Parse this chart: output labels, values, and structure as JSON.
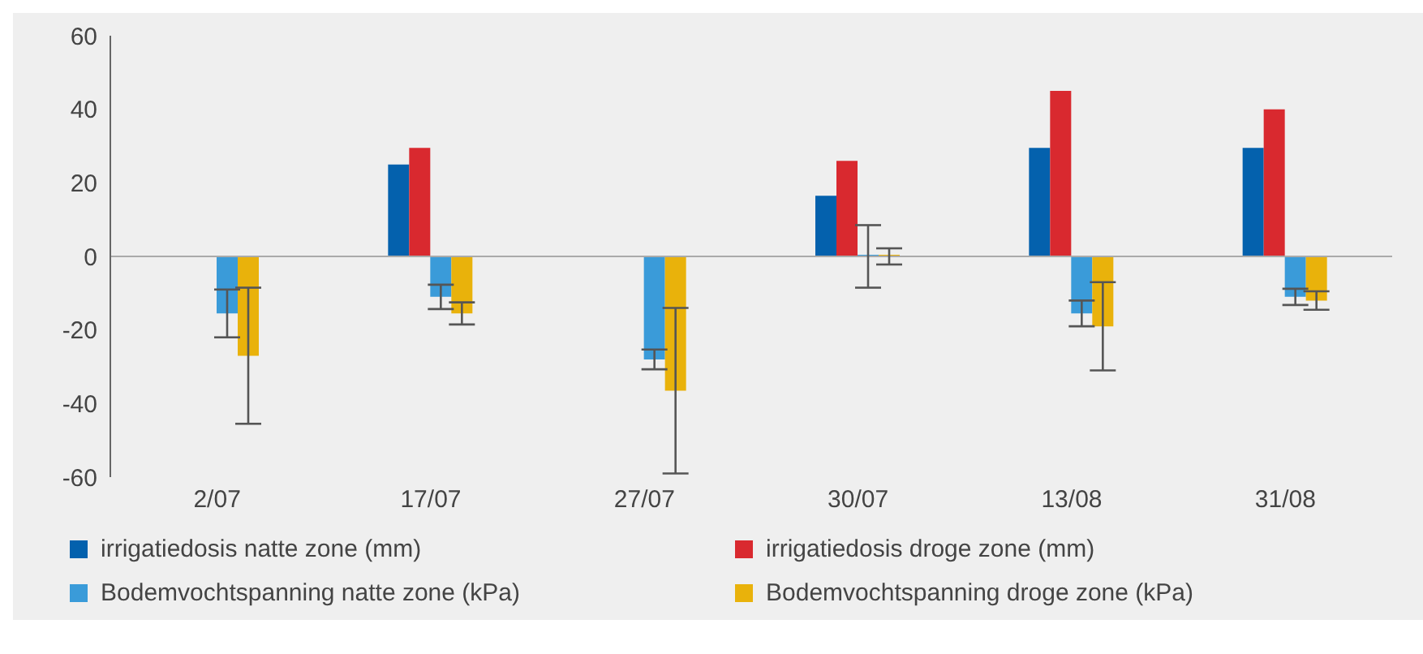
{
  "chart_data": {
    "type": "bar",
    "categories": [
      "2/07",
      "17/07",
      "27/07",
      "30/07",
      "13/08",
      "31/08"
    ],
    "series": [
      {
        "name": "irrigatiedosis natte zone (mm)",
        "color": "#0461ad",
        "values": [
          null,
          25,
          null,
          16.5,
          29.5,
          29.5
        ]
      },
      {
        "name": "irrigatiedosis droge zone (mm)",
        "color": "#d9292f",
        "values": [
          null,
          29.5,
          null,
          26,
          45,
          40
        ]
      },
      {
        "name": "Bodemvochtspanning natte zone (kPa)",
        "color": "#3a9bd9",
        "values": [
          -15.5,
          -11,
          -28,
          0,
          -15.5,
          -11
        ],
        "errors": [
          6.5,
          3.3,
          2.7,
          8.5,
          3.5,
          2.2
        ]
      },
      {
        "name": "Bodemvochtspanning droge zone (kPa)",
        "color": "#e9b20b",
        "values": [
          -27,
          -15.5,
          -36.5,
          0,
          -19,
          -12
        ],
        "errors": [
          18.5,
          3,
          22.5,
          2.2,
          12,
          2.5
        ]
      }
    ],
    "ylim": [
      -60,
      60
    ],
    "yticks": [
      -60,
      -40,
      -20,
      0,
      20,
      40,
      60
    ],
    "ref_lines": [
      {
        "axis": "y",
        "value": 0,
        "color": "#aaaaaa"
      }
    ],
    "grid": false,
    "legend": "bottom"
  }
}
